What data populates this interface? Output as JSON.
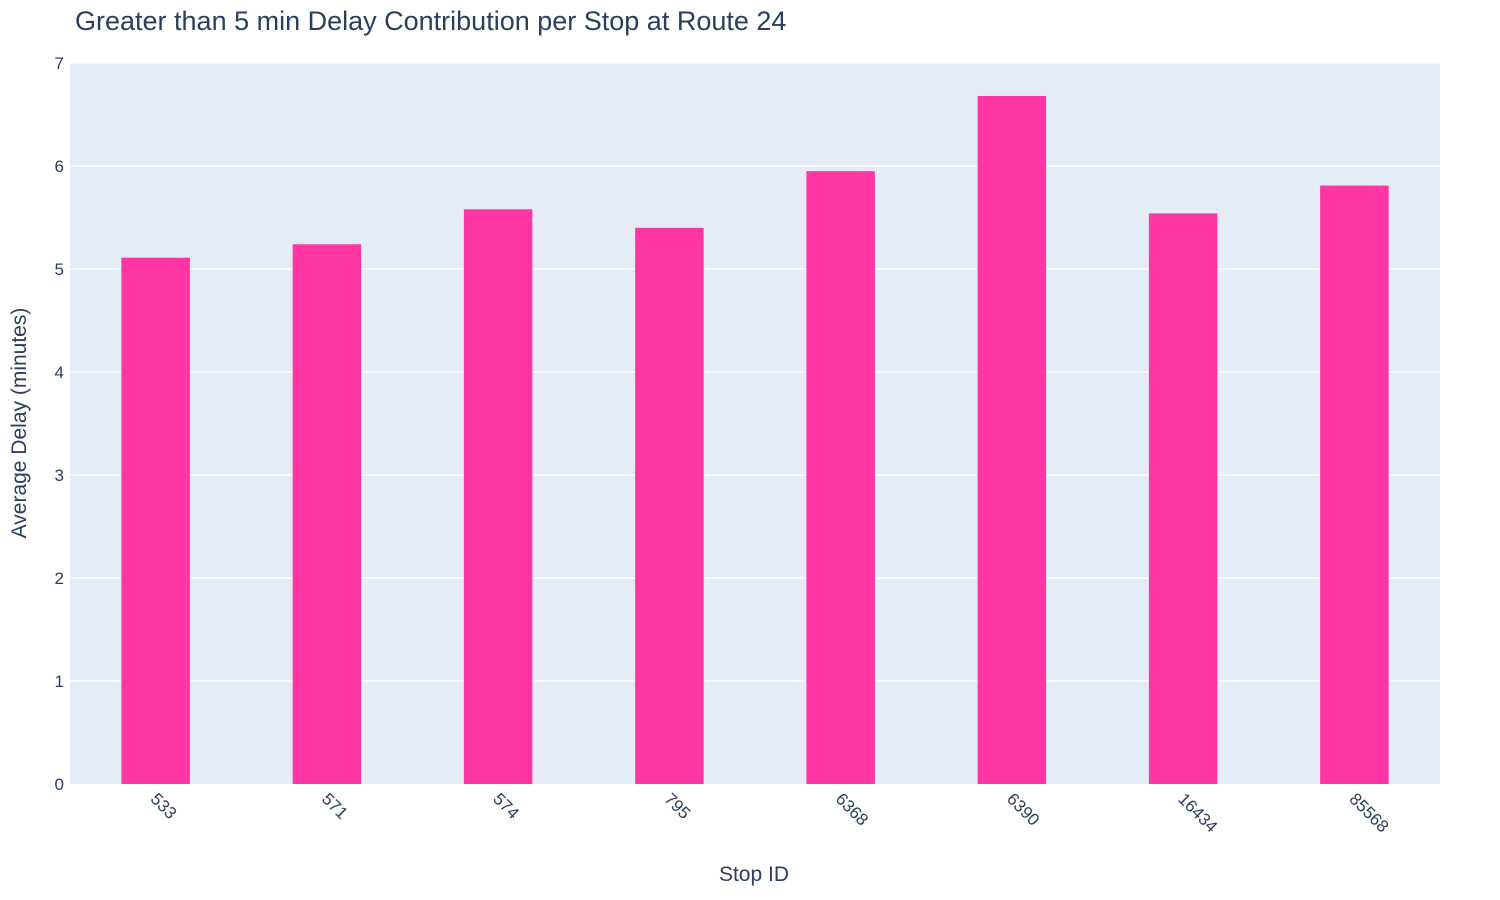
{
  "chart_data": {
    "type": "bar",
    "title": "Greater than 5 min Delay Contribution per Stop at Route 24",
    "xlabel": "Stop ID",
    "ylabel": "Average Delay (minutes)",
    "categories": [
      "533",
      "571",
      "574",
      "795",
      "6368",
      "6390",
      "16434",
      "85568"
    ],
    "values": [
      5.11,
      5.24,
      5.58,
      5.4,
      5.95,
      6.68,
      5.54,
      5.81
    ],
    "ylim": [
      0,
      7
    ],
    "yticks": [
      "0",
      "1",
      "2",
      "3",
      "4",
      "5",
      "6",
      "7"
    ],
    "grid": true,
    "legend": "none",
    "colors": {
      "bar": "#ff36a3",
      "plot_background": "#e5ecf6",
      "text": "#2a3f5f",
      "grid": "#ffffff"
    }
  }
}
